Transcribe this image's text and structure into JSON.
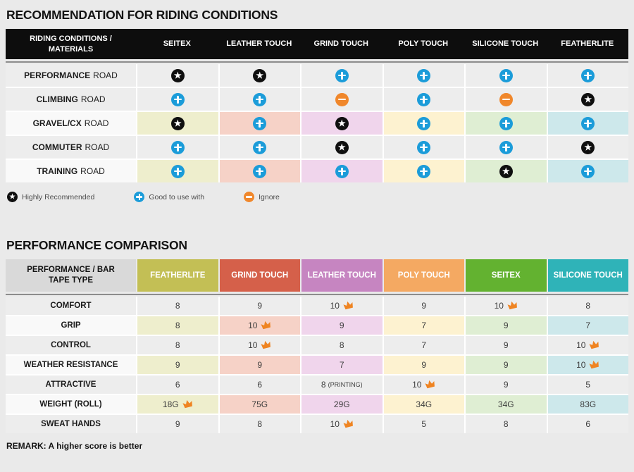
{
  "riding_table": {
    "title": "RECOMMENDATION FOR RIDING CONDITIONS",
    "header_label": "RIDING CONDITIONS / MATERIALS",
    "columns": [
      "SEITEX",
      "LEATHER TOUCH",
      "GRIND TOUCH",
      "POLY TOUCH",
      "SILICONE TOUCH",
      "FEATHERLITE"
    ],
    "column_tints": [
      "#eeeecd",
      "#f6d2c7",
      "#f0d5ec",
      "#fdf2d0",
      "#dfeed3",
      "#cde8eb"
    ],
    "rows": [
      {
        "condition": "PERFORMANCE",
        "suffix": "ROAD",
        "tinted": false,
        "marks": [
          "star",
          "star",
          "plus",
          "plus",
          "plus",
          "plus"
        ]
      },
      {
        "condition": "CLIMBING",
        "suffix": "ROAD",
        "tinted": false,
        "marks": [
          "plus",
          "plus",
          "minus",
          "plus",
          "minus",
          "star"
        ]
      },
      {
        "condition": "GRAVEL/CX",
        "suffix": "ROAD",
        "tinted": true,
        "marks": [
          "star",
          "plus",
          "star",
          "plus",
          "plus",
          "plus"
        ]
      },
      {
        "condition": "COMMUTER",
        "suffix": "ROAD",
        "tinted": false,
        "marks": [
          "plus",
          "plus",
          "star",
          "plus",
          "plus",
          "star"
        ]
      },
      {
        "condition": "TRAINING",
        "suffix": "ROAD",
        "tinted": true,
        "marks": [
          "plus",
          "plus",
          "plus",
          "plus",
          "star",
          "plus"
        ]
      }
    ],
    "legend": [
      {
        "icon": "star",
        "label": "Highly Recommended"
      },
      {
        "icon": "plus",
        "label": "Good to use with"
      },
      {
        "icon": "minus",
        "label": "Ignore"
      }
    ]
  },
  "performance_table": {
    "title": "PERFORMANCE COMPARISON",
    "header_label": "PERFORMANCE / BAR TAPE TYPE",
    "columns": [
      {
        "name": "FEATHERLITE",
        "color": "#c3bf55",
        "tint": "#eeeecd"
      },
      {
        "name": "GRIND TOUCH",
        "color": "#d5604a",
        "tint": "#f6d2c7"
      },
      {
        "name": "LEATHER TOUCH",
        "color": "#c685c1",
        "tint": "#f0d5ec"
      },
      {
        "name": "POLY TOUCH",
        "color": "#f4a962",
        "tint": "#fdf2d0"
      },
      {
        "name": "SEITEX",
        "color": "#63b230",
        "tint": "#dfeed3"
      },
      {
        "name": "SILICONE TOUCH",
        "color": "#2fb3b8",
        "tint": "#cde8eb"
      }
    ],
    "rows": [
      {
        "label": "COMFORT",
        "tinted": false,
        "cells": [
          {
            "value": "8"
          },
          {
            "value": "9"
          },
          {
            "value": "10",
            "crown": true
          },
          {
            "value": "9"
          },
          {
            "value": "10",
            "crown": true
          },
          {
            "value": "8"
          }
        ]
      },
      {
        "label": "GRIP",
        "tinted": true,
        "cells": [
          {
            "value": "8"
          },
          {
            "value": "10",
            "crown": true
          },
          {
            "value": "9"
          },
          {
            "value": "7"
          },
          {
            "value": "9"
          },
          {
            "value": "7"
          }
        ]
      },
      {
        "label": "CONTROL",
        "tinted": false,
        "cells": [
          {
            "value": "8"
          },
          {
            "value": "10",
            "crown": true
          },
          {
            "value": "8"
          },
          {
            "value": "7"
          },
          {
            "value": "9"
          },
          {
            "value": "10",
            "crown": true
          }
        ]
      },
      {
        "label": "WEATHER RESISTANCE",
        "tinted": true,
        "cells": [
          {
            "value": "9"
          },
          {
            "value": "9"
          },
          {
            "value": "7"
          },
          {
            "value": "9"
          },
          {
            "value": "9"
          },
          {
            "value": "10",
            "crown": true
          }
        ]
      },
      {
        "label": "ATTRACTIVE",
        "tinted": false,
        "cells": [
          {
            "value": "6"
          },
          {
            "value": "6"
          },
          {
            "value": "8",
            "note": "(PRINTING)"
          },
          {
            "value": "10",
            "crown": true
          },
          {
            "value": "9"
          },
          {
            "value": "5"
          }
        ]
      },
      {
        "label": "WEIGHT (ROLL)",
        "tinted": true,
        "cells": [
          {
            "value": "18G",
            "crown": true
          },
          {
            "value": "75G"
          },
          {
            "value": "29G"
          },
          {
            "value": "34G"
          },
          {
            "value": "34G"
          },
          {
            "value": "83G"
          }
        ]
      },
      {
        "label": "SWEAT HANDS",
        "tinted": false,
        "cells": [
          {
            "value": "9"
          },
          {
            "value": "8"
          },
          {
            "value": "10",
            "crown": true
          },
          {
            "value": "5"
          },
          {
            "value": "8"
          },
          {
            "value": "6"
          }
        ]
      }
    ],
    "remark": "REMARK: A higher score is better"
  },
  "colors": {
    "page_bg": "#eaeaea",
    "table_header_bg": "#0d0d0d",
    "gray_cell": "#ededed",
    "tinted_label_cell": "#f9f9f9",
    "highly_recommended_mark": "#0f0f0f",
    "good_to_use_mark": "#1b9cd9",
    "ignore_mark": "#f0872b",
    "crown": "#ef8422"
  },
  "chart_data": [
    {
      "type": "table",
      "title": "RECOMMENDATION FOR RIDING CONDITIONS",
      "columns": [
        "SEITEX",
        "LEATHER TOUCH",
        "GRIND TOUCH",
        "POLY TOUCH",
        "SILICONE TOUCH",
        "FEATHERLITE"
      ],
      "rows": [
        {
          "label": "PERFORMANCE ROAD",
          "values": [
            "highly-recommended",
            "highly-recommended",
            "good-to-use-with",
            "good-to-use-with",
            "good-to-use-with",
            "good-to-use-with"
          ]
        },
        {
          "label": "CLIMBING ROAD",
          "values": [
            "good-to-use-with",
            "good-to-use-with",
            "ignore",
            "good-to-use-with",
            "ignore",
            "highly-recommended"
          ]
        },
        {
          "label": "GRAVEL/CX ROAD",
          "values": [
            "highly-recommended",
            "good-to-use-with",
            "highly-recommended",
            "good-to-use-with",
            "good-to-use-with",
            "good-to-use-with"
          ]
        },
        {
          "label": "COMMUTER ROAD",
          "values": [
            "good-to-use-with",
            "good-to-use-with",
            "highly-recommended",
            "good-to-use-with",
            "good-to-use-with",
            "highly-recommended"
          ]
        },
        {
          "label": "TRAINING ROAD",
          "values": [
            "good-to-use-with",
            "good-to-use-with",
            "good-to-use-with",
            "good-to-use-with",
            "highly-recommended",
            "good-to-use-with"
          ]
        }
      ],
      "legend": [
        "Highly Recommended",
        "Good to use with",
        "Ignore"
      ]
    },
    {
      "type": "table",
      "title": "PERFORMANCE COMPARISON",
      "columns": [
        "FEATHERLITE",
        "GRIND TOUCH",
        "LEATHER TOUCH",
        "POLY TOUCH",
        "SEITEX",
        "SILICONE TOUCH"
      ],
      "rows": [
        {
          "label": "COMFORT",
          "values": [
            "8",
            "9",
            "10",
            "9",
            "10",
            "8"
          ],
          "crowned_columns": [
            "LEATHER TOUCH",
            "SEITEX"
          ]
        },
        {
          "label": "GRIP",
          "values": [
            "8",
            "10",
            "9",
            "7",
            "9",
            "7"
          ],
          "crowned_columns": [
            "GRIND TOUCH"
          ]
        },
        {
          "label": "CONTROL",
          "values": [
            "8",
            "10",
            "8",
            "7",
            "9",
            "10"
          ],
          "crowned_columns": [
            "GRIND TOUCH",
            "SILICONE TOUCH"
          ]
        },
        {
          "label": "WEATHER RESISTANCE",
          "values": [
            "9",
            "9",
            "7",
            "9",
            "9",
            "10"
          ],
          "crowned_columns": [
            "SILICONE TOUCH"
          ]
        },
        {
          "label": "ATTRACTIVE",
          "values": [
            "6",
            "6",
            "8 (PRINTING)",
            "10",
            "9",
            "5"
          ],
          "crowned_columns": [
            "POLY TOUCH"
          ]
        },
        {
          "label": "WEIGHT (ROLL)",
          "values": [
            "18G",
            "75G",
            "29G",
            "34G",
            "34G",
            "83G"
          ],
          "crowned_columns": [
            "FEATHERLITE"
          ]
        },
        {
          "label": "SWEAT HANDS",
          "values": [
            "9",
            "8",
            "10",
            "5",
            "8",
            "6"
          ],
          "crowned_columns": [
            "LEATHER TOUCH"
          ]
        }
      ],
      "remark": "REMARK: A higher score is better"
    }
  ]
}
